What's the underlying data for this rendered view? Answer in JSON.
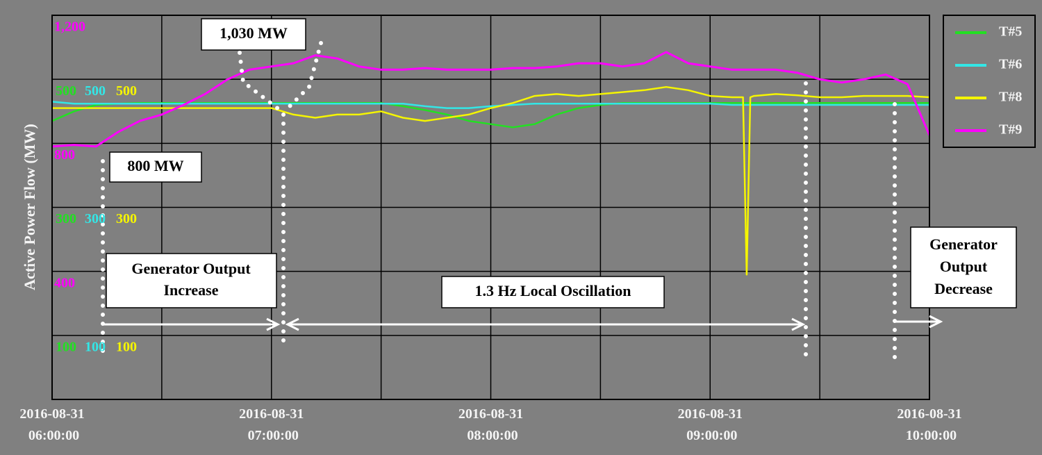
{
  "chart_data": {
    "type": "line",
    "ylabel": "Active Power Flow (MW)",
    "x": [
      "2016-08-31 06:00:00",
      "2016-08-31 06:06:00",
      "2016-08-31 06:12:00",
      "2016-08-31 06:18:00",
      "2016-08-31 06:24:00",
      "2016-08-31 06:30:00",
      "2016-08-31 06:36:00",
      "2016-08-31 06:42:00",
      "2016-08-31 06:48:00",
      "2016-08-31 06:54:00",
      "2016-08-31 07:00:00",
      "2016-08-31 07:06:00",
      "2016-08-31 07:12:00",
      "2016-08-31 07:18:00",
      "2016-08-31 07:24:00",
      "2016-08-31 07:30:00",
      "2016-08-31 07:36:00",
      "2016-08-31 07:42:00",
      "2016-08-31 07:48:00",
      "2016-08-31 07:54:00",
      "2016-08-31 08:00:00",
      "2016-08-31 08:06:00",
      "2016-08-31 08:12:00",
      "2016-08-31 08:18:00",
      "2016-08-31 08:24:00",
      "2016-08-31 08:30:00",
      "2016-08-31 08:36:00",
      "2016-08-31 08:42:00",
      "2016-08-31 08:48:00",
      "2016-08-31 08:54:00",
      "2016-08-31 09:00:00",
      "2016-08-31 09:06:00",
      "2016-08-31 09:09:00",
      "2016-08-31 09:10:00",
      "2016-08-31 09:11:00",
      "2016-08-31 09:12:00",
      "2016-08-31 09:18:00",
      "2016-08-31 09:24:00",
      "2016-08-31 09:30:00",
      "2016-08-31 09:36:00",
      "2016-08-31 09:42:00",
      "2016-08-31 09:48:00",
      "2016-08-31 09:54:00",
      "2016-08-31 10:00:00"
    ],
    "series": [
      {
        "name": "T#5",
        "color": "#22e022",
        "axis": "y",
        "values": [
          435,
          450,
          460,
          462,
          463,
          463,
          463,
          463,
          463,
          463,
          463,
          463,
          463,
          463,
          463,
          463,
          458,
          452,
          445,
          435,
          430,
          425,
          430,
          445,
          455,
          460,
          463,
          463,
          463,
          463,
          463,
          463,
          463,
          463,
          463,
          463,
          463,
          463,
          463,
          463,
          463,
          463,
          463,
          463
        ]
      },
      {
        "name": "T#6",
        "color": "#33e6e6",
        "axis": "y",
        "values": [
          465,
          462,
          462,
          462,
          462,
          462,
          462,
          462,
          462,
          462,
          462,
          462,
          462,
          462,
          462,
          462,
          462,
          458,
          455,
          455,
          458,
          460,
          462,
          462,
          462,
          462,
          462,
          462,
          462,
          462,
          462,
          460,
          460,
          460,
          460,
          460,
          460,
          460,
          460,
          460,
          460,
          460,
          460,
          460
        ]
      },
      {
        "name": "T#8",
        "color": "#f5f500",
        "axis": "y",
        "values": [
          455,
          455,
          455,
          455,
          455,
          455,
          455,
          455,
          455,
          455,
          455,
          445,
          440,
          445,
          445,
          450,
          440,
          435,
          440,
          445,
          455,
          463,
          474,
          477,
          474,
          477,
          480,
          483,
          488,
          483,
          474,
          472,
          472,
          195,
          472,
          474,
          477,
          475,
          472,
          472,
          474,
          474,
          474,
          472
        ]
      },
      {
        "name": "T#9",
        "color": "#ff00ff",
        "axis": "y2",
        "values": [
          790,
          795,
          790,
          835,
          870,
          890,
          920,
          955,
          1000,
          1030,
          1040,
          1050,
          1075,
          1065,
          1040,
          1030,
          1030,
          1035,
          1030,
          1030,
          1030,
          1035,
          1035,
          1040,
          1050,
          1050,
          1040,
          1050,
          1085,
          1050,
          1040,
          1030,
          1030,
          1030,
          1030,
          1030,
          1030,
          1020,
          1000,
          990,
          1000,
          1015,
          985,
          825
        ]
      }
    ],
    "xlim": [
      "2016-08-31 06:00:00",
      "2016-08-31 10:00:00"
    ],
    "xticks": [
      "2016-08-31 06:00:00",
      "2016-08-31 07:00:00",
      "2016-08-31 08:00:00",
      "2016-08-31 09:00:00",
      "2016-08-31 10:00:00"
    ],
    "xminor": [
      "2016-08-31 06:30:00",
      "2016-08-31 07:30:00",
      "2016-08-31 08:30:00",
      "2016-08-31 09:30:00"
    ],
    "ylim": [
      0,
      600
    ],
    "yticks": [
      100,
      300,
      500
    ],
    "y2lim": [
      0,
      1200
    ],
    "y2ticks": [
      {
        "value": 400,
        "label": "400"
      },
      {
        "value": 800,
        "label": "800"
      },
      {
        "value": 1200,
        "label": "1,200"
      }
    ],
    "grid": true,
    "legend": "right",
    "annotations": [
      {
        "lines": [
          "1,030 MW"
        ]
      },
      {
        "lines": [
          "800 MW"
        ]
      },
      {
        "lines": [
          "Generator Output",
          "Increase"
        ]
      },
      {
        "lines": [
          "1.3 Hz Local Oscillation"
        ]
      },
      {
        "lines": [
          "Generator",
          "Output",
          "Decrease"
        ]
      }
    ]
  }
}
